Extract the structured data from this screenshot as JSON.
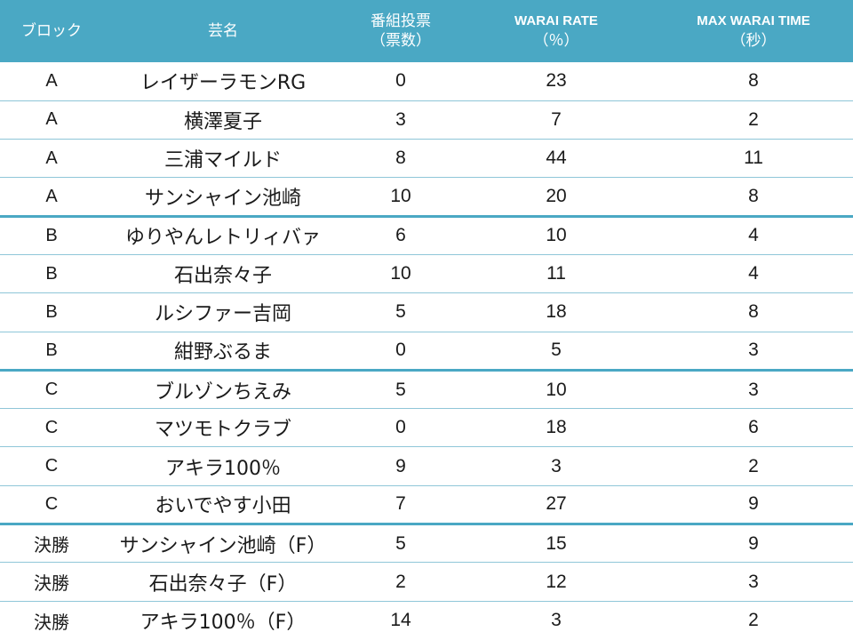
{
  "header": {
    "block": "ブロック",
    "name": "芸名",
    "votes_line1": "番組投票",
    "votes_line2": "（票数）",
    "rate_line1": "WARAI RATE",
    "rate_line2": "（％）",
    "time_line1": "MAX WARAI TIME",
    "time_line2": "（秒）"
  },
  "rows": [
    {
      "block": "A",
      "name": "レイザーラモンRG",
      "votes": "0",
      "rate": "23",
      "time": "8"
    },
    {
      "block": "A",
      "name": "横澤夏子",
      "votes": "3",
      "rate": "7",
      "time": "2"
    },
    {
      "block": "A",
      "name": "三浦マイルド",
      "votes": "8",
      "rate": "44",
      "time": "11"
    },
    {
      "block": "A",
      "name": "サンシャイン池崎",
      "votes": "10",
      "rate": "20",
      "time": "8"
    },
    {
      "block": "B",
      "name": "ゆりやんレトリィバァ",
      "votes": "6",
      "rate": "10",
      "time": "4"
    },
    {
      "block": "B",
      "name": "石出奈々子",
      "votes": "10",
      "rate": "11",
      "time": "4"
    },
    {
      "block": "B",
      "name": "ルシファー吉岡",
      "votes": "5",
      "rate": "18",
      "time": "8"
    },
    {
      "block": "B",
      "name": "紺野ぶるま",
      "votes": "0",
      "rate": "5",
      "time": "3"
    },
    {
      "block": "C",
      "name": "ブルゾンちえみ",
      "votes": "5",
      "rate": "10",
      "time": "3"
    },
    {
      "block": "C",
      "name": "マツモトクラブ",
      "votes": "0",
      "rate": "18",
      "time": "6"
    },
    {
      "block": "C",
      "name": "アキラ100％",
      "votes": "9",
      "rate": "3",
      "time": "2"
    },
    {
      "block": "C",
      "name": "おいでやす小田",
      "votes": "7",
      "rate": "27",
      "time": "9"
    },
    {
      "block": "決勝",
      "name": "サンシャイン池崎（F）",
      "votes": "5",
      "rate": "15",
      "time": "9"
    },
    {
      "block": "決勝",
      "name": "石出奈々子（F）",
      "votes": "2",
      "rate": "12",
      "time": "3"
    },
    {
      "block": "決勝",
      "name": "アキラ100％（F）",
      "votes": "14",
      "rate": "3",
      "time": "2"
    }
  ]
}
